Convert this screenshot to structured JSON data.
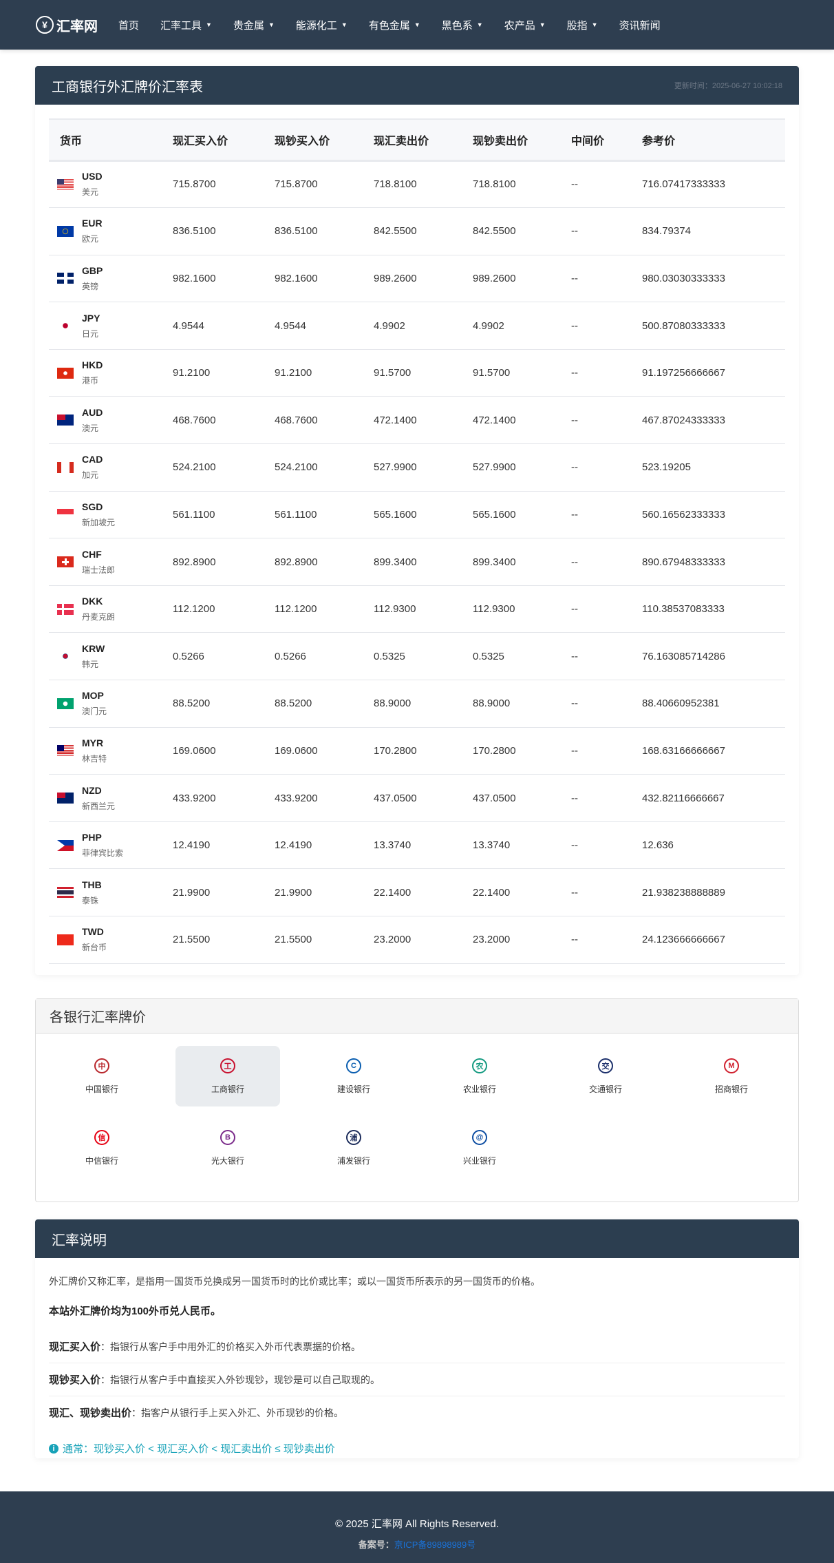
{
  "nav": {
    "logo": "汇率网",
    "items": [
      {
        "label": "首页",
        "dropdown": false
      },
      {
        "label": "汇率工具",
        "dropdown": true
      },
      {
        "label": "贵金属",
        "dropdown": true
      },
      {
        "label": "能源化工",
        "dropdown": true
      },
      {
        "label": "有色金属",
        "dropdown": true
      },
      {
        "label": "黑色系",
        "dropdown": true
      },
      {
        "label": "农产品",
        "dropdown": true
      },
      {
        "label": "股指",
        "dropdown": true
      },
      {
        "label": "资讯新闻",
        "dropdown": false
      }
    ]
  },
  "rates": {
    "title": "工商银行外汇牌价汇率表",
    "update": "更新时间：2025-06-27 10:02:18",
    "headers": [
      "货币",
      "现汇买入价",
      "现钞买入价",
      "现汇卖出价",
      "现钞卖出价",
      "中间价",
      "参考价"
    ],
    "rows": [
      {
        "code": "USD",
        "name": "美元",
        "values": [
          "715.8700",
          "715.8700",
          "718.8100",
          "718.8100",
          "--",
          "716.07417333333"
        ]
      },
      {
        "code": "EUR",
        "name": "欧元",
        "values": [
          "836.5100",
          "836.5100",
          "842.5500",
          "842.5500",
          "--",
          "834.79374"
        ]
      },
      {
        "code": "GBP",
        "name": "英镑",
        "values": [
          "982.1600",
          "982.1600",
          "989.2600",
          "989.2600",
          "--",
          "980.03030333333"
        ]
      },
      {
        "code": "JPY",
        "name": "日元",
        "values": [
          "4.9544",
          "4.9544",
          "4.9902",
          "4.9902",
          "--",
          "500.87080333333"
        ]
      },
      {
        "code": "HKD",
        "name": "港币",
        "values": [
          "91.2100",
          "91.2100",
          "91.5700",
          "91.5700",
          "--",
          "91.197256666667"
        ]
      },
      {
        "code": "AUD",
        "name": "澳元",
        "values": [
          "468.7600",
          "468.7600",
          "472.1400",
          "472.1400",
          "--",
          "467.87024333333"
        ]
      },
      {
        "code": "CAD",
        "name": "加元",
        "values": [
          "524.2100",
          "524.2100",
          "527.9900",
          "527.9900",
          "--",
          "523.19205"
        ]
      },
      {
        "code": "SGD",
        "name": "新加坡元",
        "values": [
          "561.1100",
          "561.1100",
          "565.1600",
          "565.1600",
          "--",
          "560.16562333333"
        ]
      },
      {
        "code": "CHF",
        "name": "瑞士法郎",
        "values": [
          "892.8900",
          "892.8900",
          "899.3400",
          "899.3400",
          "--",
          "890.67948333333"
        ]
      },
      {
        "code": "DKK",
        "name": "丹麦克朗",
        "values": [
          "112.1200",
          "112.1200",
          "112.9300",
          "112.9300",
          "--",
          "110.38537083333"
        ]
      },
      {
        "code": "KRW",
        "name": "韩元",
        "values": [
          "0.5266",
          "0.5266",
          "0.5325",
          "0.5325",
          "--",
          "76.163085714286"
        ]
      },
      {
        "code": "MOP",
        "name": "澳门元",
        "values": [
          "88.5200",
          "88.5200",
          "88.9000",
          "88.9000",
          "--",
          "88.40660952381"
        ]
      },
      {
        "code": "MYR",
        "name": "林吉特",
        "values": [
          "169.0600",
          "169.0600",
          "170.2800",
          "170.2800",
          "--",
          "168.63166666667"
        ]
      },
      {
        "code": "NZD",
        "name": "新西兰元",
        "values": [
          "433.9200",
          "433.9200",
          "437.0500",
          "437.0500",
          "--",
          "432.82116666667"
        ]
      },
      {
        "code": "PHP",
        "name": "菲律宾比索",
        "values": [
          "12.4190",
          "12.4190",
          "13.3740",
          "13.3740",
          "--",
          "12.636"
        ]
      },
      {
        "code": "THB",
        "name": "泰铢",
        "values": [
          "21.9900",
          "21.9900",
          "22.1400",
          "22.1400",
          "--",
          "21.938238888889"
        ]
      },
      {
        "code": "TWD",
        "name": "新台币",
        "values": [
          "21.5500",
          "21.5500",
          "23.2000",
          "23.2000",
          "--",
          "24.123666666667"
        ]
      }
    ]
  },
  "banks": {
    "title": "各银行汇率牌价",
    "items": [
      {
        "label": "中国银行",
        "color": "#b8262b",
        "glyph": "中",
        "active": false
      },
      {
        "label": "工商银行",
        "color": "#c8102e",
        "glyph": "工",
        "active": true
      },
      {
        "label": "建设银行",
        "color": "#0a5eb0",
        "glyph": "C",
        "active": false
      },
      {
        "label": "农业银行",
        "color": "#139a80",
        "glyph": "农",
        "active": false
      },
      {
        "label": "交通银行",
        "color": "#1b2f6b",
        "glyph": "交",
        "active": false
      },
      {
        "label": "招商银行",
        "color": "#d0202e",
        "glyph": "M",
        "active": false
      },
      {
        "label": "中信银行",
        "color": "#e60012",
        "glyph": "信",
        "active": false
      },
      {
        "label": "光大银行",
        "color": "#7a2a8a",
        "glyph": "B",
        "active": false
      },
      {
        "label": "浦发银行",
        "color": "#1d2d5c",
        "glyph": "浦",
        "active": false
      },
      {
        "label": "兴业银行",
        "color": "#0c4da2",
        "glyph": "@",
        "active": false
      }
    ]
  },
  "explain": {
    "title": "汇率说明",
    "intro": "外汇牌价又称汇率，是指用一国货币兑换成另一国货币时的比价或比率；或以一国货币所表示的另一国货币的价格。",
    "note": "本站外汇牌价均为100外币兑人民币。",
    "defs": [
      {
        "term": "现汇买入价",
        "text": "：指银行从客户手中用外汇的价格买入外币代表票据的价格。"
      },
      {
        "term": "现钞买入价",
        "text": "：指银行从客户手中直接买入外钞现钞，现钞是可以自己取现的。"
      },
      {
        "term": "现汇、现钞卖出价",
        "text": "：指客户从银行手上买入外汇、外币现钞的价格。"
      }
    ],
    "tip": "通常：现钞买入价 < 现汇买入价 < 现汇卖出价 ≤ 现钞卖出价"
  },
  "footer": {
    "copyright": "© 2025 汇率网 All Rights Reserved.",
    "icp_label": "备案号：",
    "icp_link": "京ICP备89898989号"
  }
}
